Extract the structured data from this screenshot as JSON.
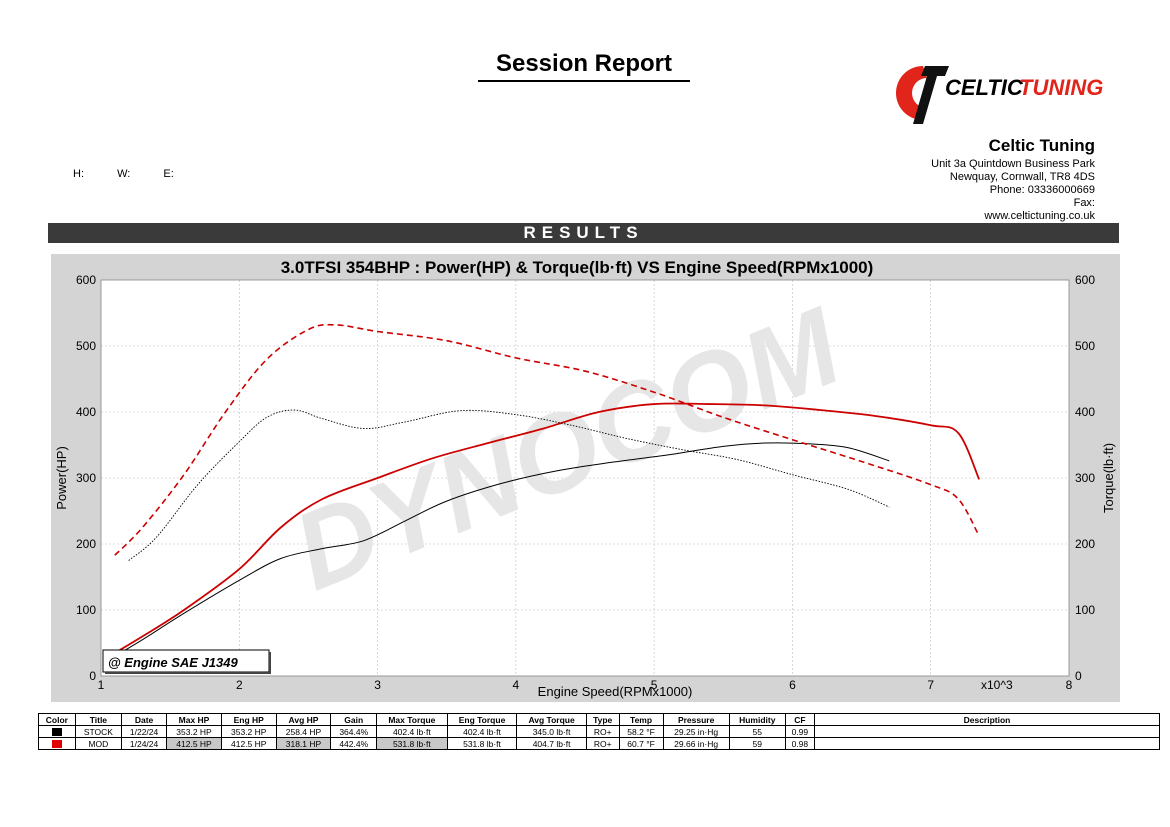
{
  "report": {
    "title": "Session Report",
    "h_label": "H:",
    "w_label": "W:",
    "e_label": "E:",
    "results_label": "RESULTS"
  },
  "logo": {
    "text_a": "CELTIC",
    "text_b": "TUNING",
    "color_a": "#000000",
    "color_b": "#e1251b"
  },
  "company": {
    "name": "Celtic Tuning",
    "address1": "Unit 3a Quintdown Business Park",
    "address2": "Newquay, Cornwall, TR8 4DS",
    "phone": "Phone: 03336000669",
    "fax": "Fax:",
    "web": "www.celtictuning.co.uk"
  },
  "colors": {
    "stock": "#000000",
    "mod": "#cc0000",
    "plot_bg": "#ffffff",
    "frame": "#d4d4d4"
  },
  "chart_data": {
    "type": "line",
    "title": "3.0TFSI 354BHP : Power(HP) & Torque(lb·ft) VS Engine Speed(RPMx1000)",
    "xlabel": "Engine Speed(RPMx1000)",
    "x_multiplier": "x10^3",
    "ylabel": "Power(HP)",
    "y2label": "Torque(lb·ft)",
    "xlim": [
      1,
      8
    ],
    "ylim": [
      0,
      600
    ],
    "y2lim": [
      0,
      600
    ],
    "xticks": [
      1,
      2,
      3,
      4,
      5,
      6,
      7,
      8
    ],
    "yticks": [
      0,
      100,
      200,
      300,
      400,
      500,
      600
    ],
    "grid": true,
    "correction_label": "@ Engine SAE J1349",
    "watermark": "DYNOCOM",
    "series": [
      {
        "name": "STOCK",
        "kind": "power",
        "color": "#000000",
        "dash": "solid",
        "x": [
          1.1,
          1.3,
          1.6,
          2.0,
          2.3,
          2.6,
          2.9,
          3.2,
          3.5,
          3.9,
          4.3,
          4.7,
          5.1,
          5.5,
          5.8,
          6.1,
          6.4,
          6.7
        ],
        "y": [
          30,
          55,
          95,
          145,
          178,
          193,
          205,
          235,
          265,
          292,
          311,
          324,
          335,
          348,
          353,
          352,
          346,
          326
        ]
      },
      {
        "name": "MOD",
        "kind": "power",
        "color": "#cc0000",
        "dash": "solid",
        "x": [
          1.1,
          1.3,
          1.6,
          2.0,
          2.3,
          2.6,
          3.0,
          3.4,
          3.8,
          4.2,
          4.6,
          5.0,
          5.4,
          5.8,
          6.2,
          6.6,
          7.0,
          7.2,
          7.35
        ],
        "y": [
          35,
          60,
          100,
          162,
          225,
          268,
          300,
          330,
          353,
          375,
          400,
          412,
          412,
          410,
          403,
          394,
          380,
          368,
          298
        ]
      },
      {
        "name": "STOCK",
        "kind": "torque",
        "color": "#000000",
        "dash": "dotted",
        "x": [
          1.2,
          1.4,
          1.7,
          2.0,
          2.2,
          2.4,
          2.6,
          2.9,
          3.2,
          3.6,
          4.0,
          4.4,
          4.8,
          5.2,
          5.6,
          6.0,
          6.4,
          6.7
        ],
        "y": [
          175,
          210,
          290,
          355,
          392,
          403,
          390,
          375,
          385,
          402,
          396,
          380,
          360,
          343,
          328,
          305,
          283,
          256
        ]
      },
      {
        "name": "MOD",
        "kind": "torque",
        "color": "#cc0000",
        "dash": "dashed",
        "x": [
          1.1,
          1.3,
          1.6,
          1.9,
          2.2,
          2.5,
          2.7,
          3.0,
          3.5,
          4.0,
          4.5,
          5.0,
          5.5,
          6.0,
          6.5,
          7.0,
          7.2,
          7.35
        ],
        "y": [
          183,
          225,
          305,
          400,
          480,
          525,
          532,
          522,
          508,
          482,
          462,
          430,
          392,
          358,
          325,
          290,
          268,
          212
        ]
      }
    ]
  },
  "table": {
    "headers": [
      "Color",
      "Title",
      "Date",
      "Max HP",
      "Eng HP",
      "Avg HP",
      "Gain",
      "Max Torque",
      "Eng Torque",
      "Avg Torque",
      "Type",
      "Temp",
      "Pressure",
      "Humidity",
      "CF",
      "Description"
    ],
    "rows": [
      {
        "color": "#000000",
        "title": "STOCK",
        "date": "1/22/24",
        "max_hp": "353.2 HP",
        "eng_hp": "353.2 HP",
        "avg_hp": "258.4 HP",
        "gain": "364.4%",
        "max_torque": "402.4 lb·ft",
        "eng_torque": "402.4 lb·ft",
        "avg_torque": "345.0 lb·ft",
        "type": "RO+",
        "temp": "58.2 °F",
        "pressure": "29.25 in·Hg",
        "humidity": "55",
        "cf": "0.99",
        "description": ""
      },
      {
        "color": "#e00000",
        "title": "MOD",
        "date": "1/24/24",
        "max_hp": "412.5 HP",
        "eng_hp": "412.5 HP",
        "avg_hp": "318.1 HP",
        "gain": "442.4%",
        "max_torque": "531.8 lb·ft",
        "eng_torque": "531.8 lb·ft",
        "avg_torque": "404.7 lb·ft",
        "type": "RO+",
        "temp": "60.7 °F",
        "pressure": "29.66 in·Hg",
        "humidity": "59",
        "cf": "0.98",
        "description": ""
      }
    ]
  }
}
